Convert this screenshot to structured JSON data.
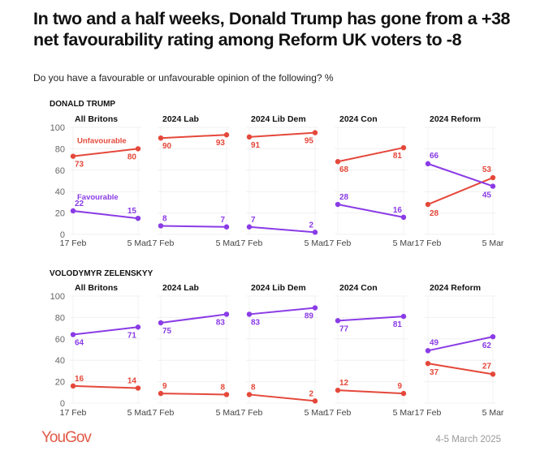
{
  "header": {
    "title": "In two and a half weeks, Donald Trump has gone from a +38 net favourability rating among Reform UK voters to -8",
    "subtitle": "Do you have a favourable or unfavourable opinion of the following? %"
  },
  "footer": {
    "logo": "YouGov",
    "date": "4-5 March 2025"
  },
  "colors": {
    "unfavourable": "#e4483a",
    "favourable": "#8a3be6",
    "logo": "#e05a47"
  },
  "chart_data": {
    "type": "line",
    "title": "In two and a half weeks, Donald Trump has gone from a +38 net favourability rating among Reform UK voters to -8",
    "subtitle": "Do you have a favourable or unfavourable opinion of the following? %",
    "x": [
      "17 Feb",
      "5 Mar"
    ],
    "ylim": [
      0,
      100
    ],
    "yticks": [
      0,
      20,
      40,
      60,
      80,
      100
    ],
    "grid": true,
    "series_labels": [
      "Unfavourable",
      "Favourable"
    ],
    "panels": [
      "All Britons",
      "2024 Lab",
      "2024 Lib Dem",
      "2024 Con",
      "2024 Reform"
    ],
    "sections": [
      {
        "name": "DONALD TRUMP",
        "groups": [
          {
            "panel": "All Britons",
            "series": [
              {
                "name": "Unfavourable",
                "values": [
                  73,
                  80
                ]
              },
              {
                "name": "Favourable",
                "values": [
                  22,
                  15
                ]
              }
            ]
          },
          {
            "panel": "2024 Lab",
            "series": [
              {
                "name": "Unfavourable",
                "values": [
                  90,
                  93
                ]
              },
              {
                "name": "Favourable",
                "values": [
                  8,
                  7
                ]
              }
            ]
          },
          {
            "panel": "2024 Lib Dem",
            "series": [
              {
                "name": "Unfavourable",
                "values": [
                  91,
                  95
                ]
              },
              {
                "name": "Favourable",
                "values": [
                  7,
                  2
                ]
              }
            ]
          },
          {
            "panel": "2024 Con",
            "series": [
              {
                "name": "Unfavourable",
                "values": [
                  68,
                  81
                ]
              },
              {
                "name": "Favourable",
                "values": [
                  28,
                  16
                ]
              }
            ]
          },
          {
            "panel": "2024 Reform",
            "series": [
              {
                "name": "Unfavourable",
                "values": [
                  28,
                  53
                ]
              },
              {
                "name": "Favourable",
                "values": [
                  66,
                  45
                ]
              }
            ]
          }
        ]
      },
      {
        "name": "VOLODYMYR ZELENSKYY",
        "groups": [
          {
            "panel": "All Britons",
            "series": [
              {
                "name": "Unfavourable",
                "values": [
                  16,
                  14
                ]
              },
              {
                "name": "Favourable",
                "values": [
                  64,
                  71
                ]
              }
            ]
          },
          {
            "panel": "2024 Lab",
            "series": [
              {
                "name": "Unfavourable",
                "values": [
                  9,
                  8
                ]
              },
              {
                "name": "Favourable",
                "values": [
                  75,
                  83
                ]
              }
            ]
          },
          {
            "panel": "2024 Lib Dem",
            "series": [
              {
                "name": "Unfavourable",
                "values": [
                  8,
                  2
                ]
              },
              {
                "name": "Favourable",
                "values": [
                  83,
                  89
                ]
              }
            ]
          },
          {
            "panel": "2024 Con",
            "series": [
              {
                "name": "Unfavourable",
                "values": [
                  12,
                  9
                ]
              },
              {
                "name": "Favourable",
                "values": [
                  77,
                  81
                ]
              }
            ]
          },
          {
            "panel": "2024 Reform",
            "series": [
              {
                "name": "Unfavourable",
                "values": [
                  37,
                  27
                ]
              },
              {
                "name": "Favourable",
                "values": [
                  49,
                  62
                ]
              }
            ]
          }
        ]
      }
    ]
  }
}
